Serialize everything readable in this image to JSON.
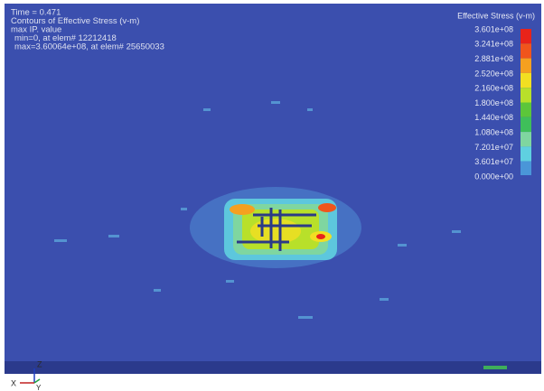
{
  "header": {
    "lines": [
      "Time =    0.471",
      "Contours of Effective Stress (v-m)",
      "max IP. value",
      "min=0, at elem# 12212418",
      "max=3.60064e+08, at elem# 25650033"
    ]
  },
  "legend": {
    "title": "Effective Stress (v-m)",
    "entries": [
      {
        "label": "3.601e+08",
        "color": "#e8231a"
      },
      {
        "label": "3.241e+08",
        "color": "#f0551c"
      },
      {
        "label": "2.881e+08",
        "color": "#f5a020"
      },
      {
        "label": "2.520e+08",
        "color": "#f2df22"
      },
      {
        "label": "2.160e+08",
        "color": "#b8e02a"
      },
      {
        "label": "1.800e+08",
        "color": "#5cc63a"
      },
      {
        "label": "1.440e+08",
        "color": "#3fbf5a"
      },
      {
        "label": "1.080e+08",
        "color": "#7fd6a0"
      },
      {
        "label": "7.201e+07",
        "color": "#5fd0e0"
      },
      {
        "label": "3.601e+07",
        "color": "#4a96d8"
      },
      {
        "label": "0.000e+00",
        "color": "#3a4fb0"
      }
    ]
  },
  "axes": {
    "z": "Z",
    "x": "X",
    "y": "Y"
  }
}
